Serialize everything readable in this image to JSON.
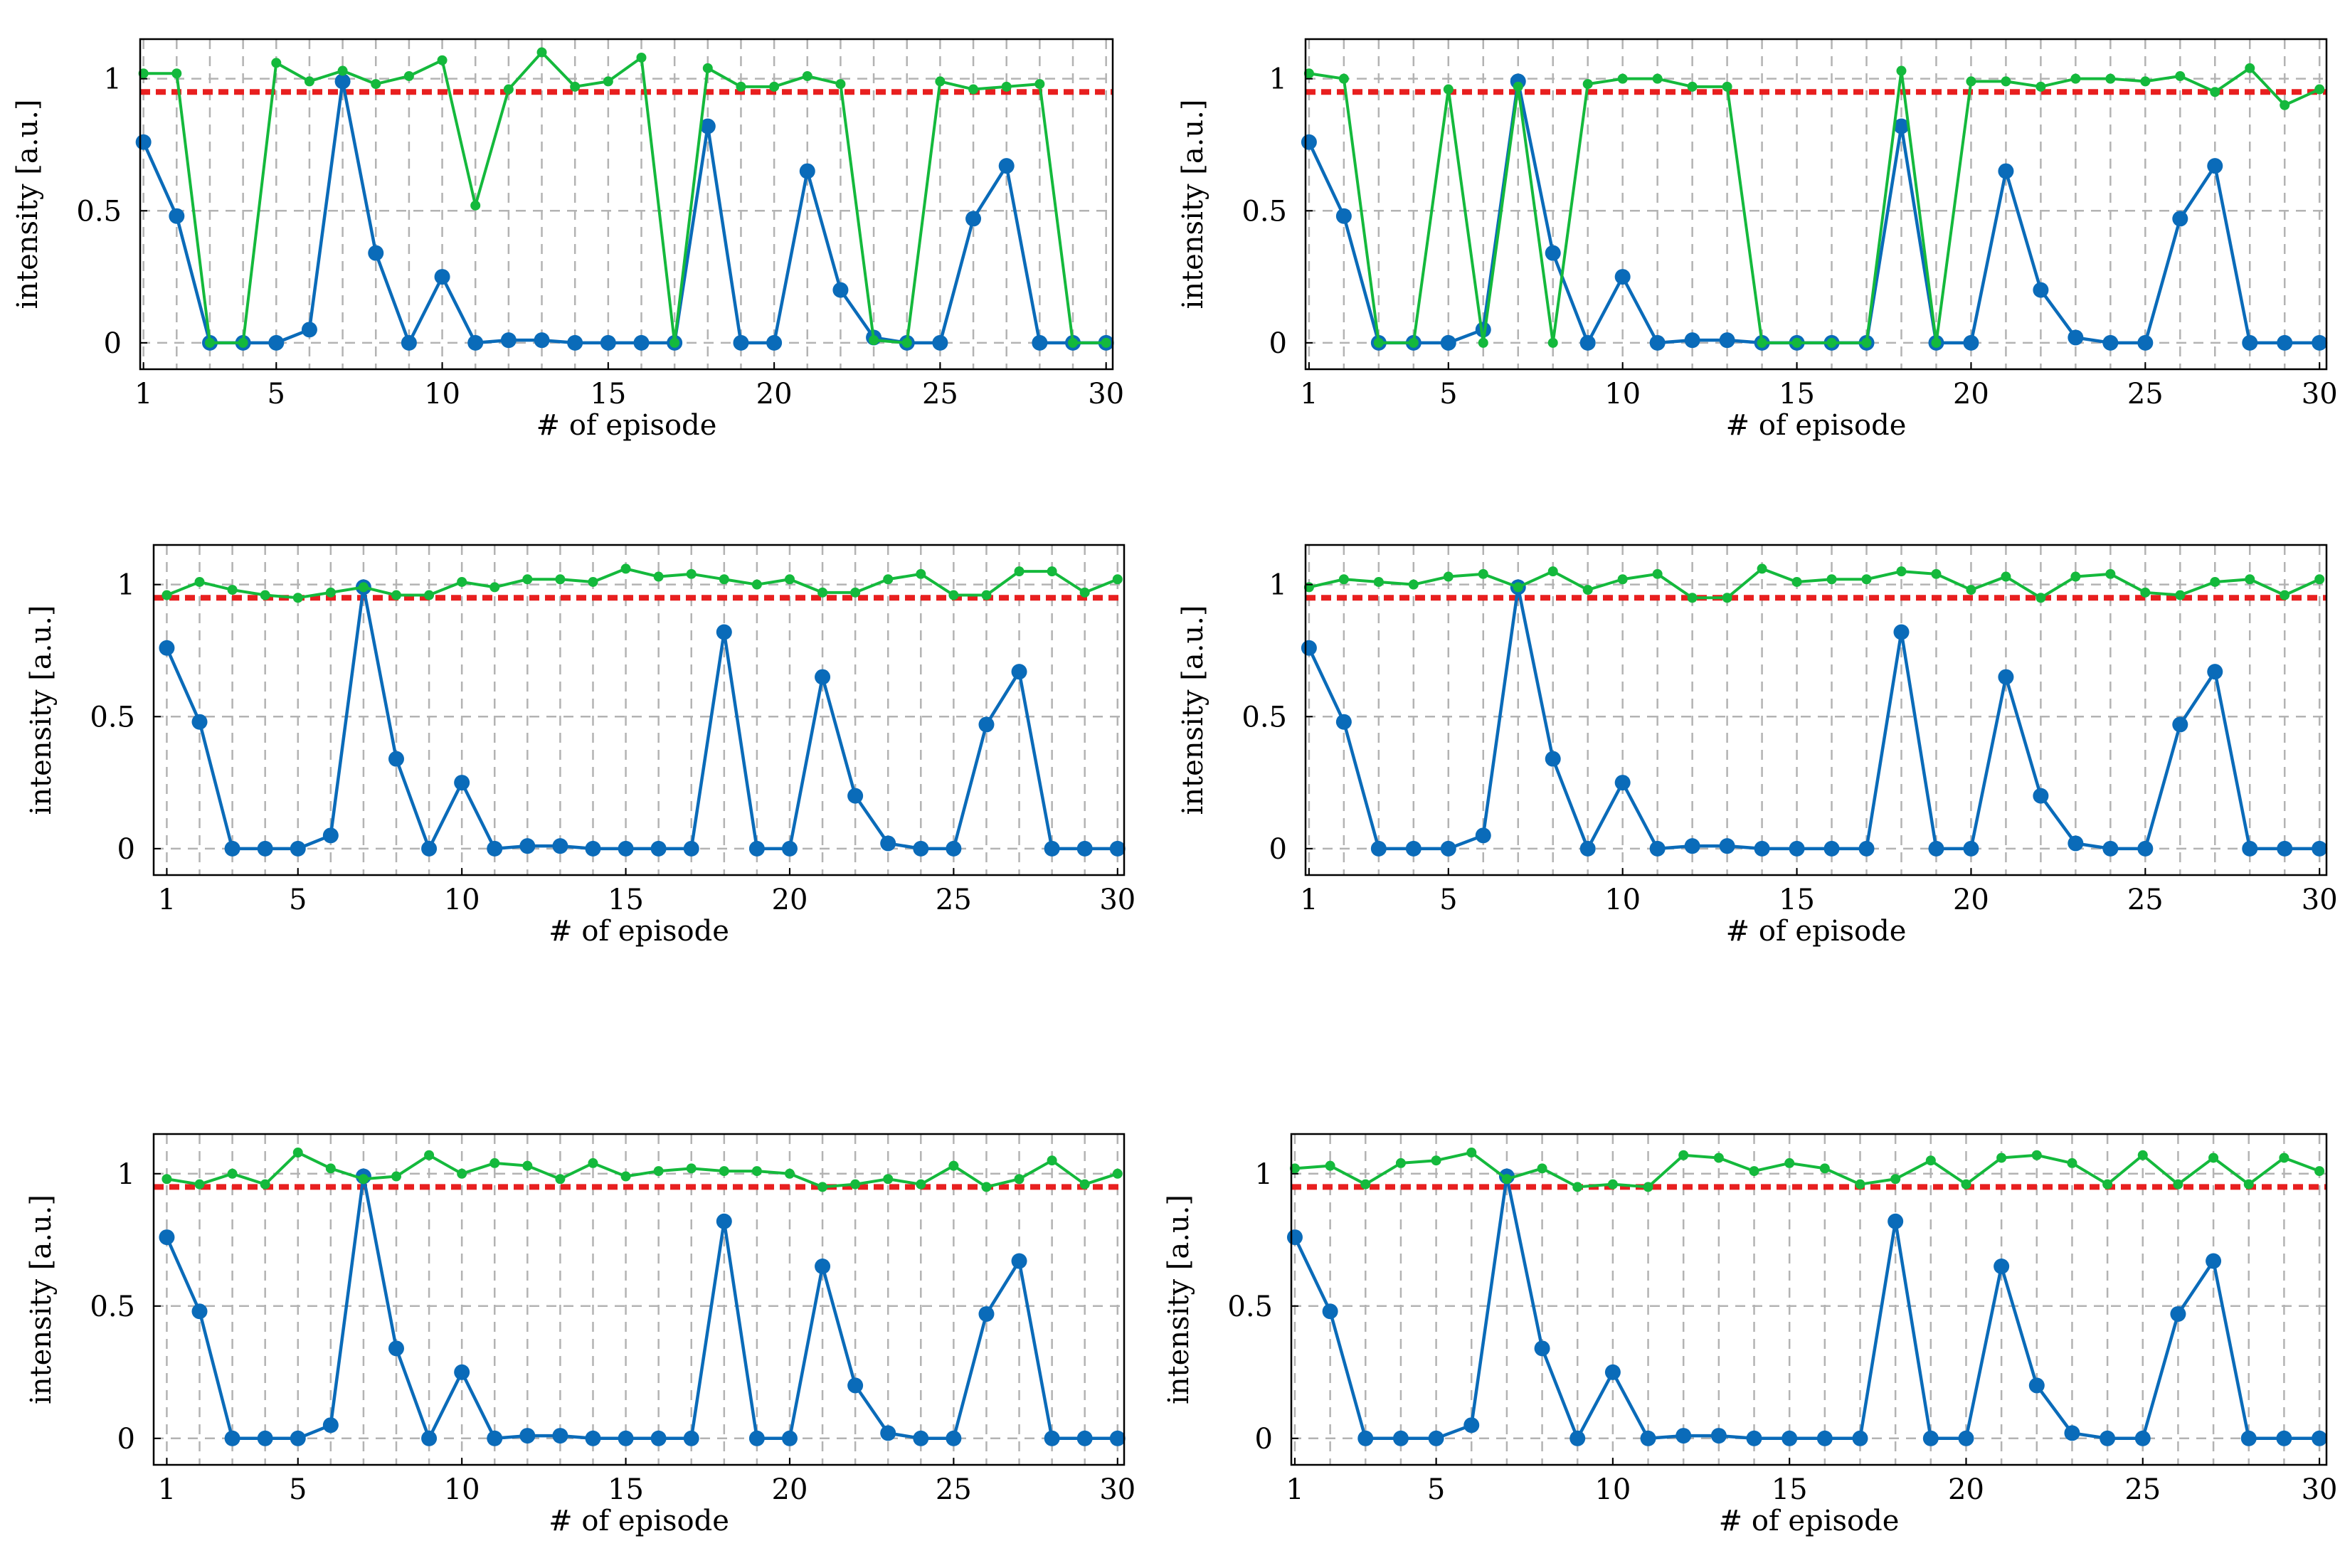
{
  "colors": {
    "blue_series": "#0A6BB9",
    "green_series": "#14B93C",
    "threshold": "#E81F1F",
    "grid": "#B3B3B3",
    "frame": "#000000"
  },
  "chart_data": [
    {
      "type": "line",
      "panel": "top-left",
      "xlabel": "# of episode",
      "ylabel": "intensity [a.u.]",
      "xticks": [
        "1",
        "5",
        "10",
        "15",
        "20",
        "25",
        "30"
      ],
      "yticks": [
        "0",
        "0.5",
        "1"
      ],
      "xlim": [
        0.9,
        30.2
      ],
      "ylim": [
        -0.1,
        1.15
      ],
      "threshold": 0.95,
      "x": [
        1,
        2,
        3,
        4,
        5,
        6,
        7,
        8,
        9,
        10,
        11,
        12,
        13,
        14,
        15,
        16,
        17,
        18,
        19,
        20,
        21,
        22,
        23,
        24,
        25,
        26,
        27,
        28,
        29,
        30
      ],
      "series": [
        {
          "name": "blue",
          "values": [
            0.76,
            0.48,
            0,
            0,
            0,
            0.05,
            0.99,
            0.34,
            0,
            0.25,
            0,
            0.01,
            0.01,
            0,
            0,
            0,
            0,
            0.82,
            0,
            0,
            0.65,
            0.2,
            0.02,
            0,
            0,
            0.47,
            0.67,
            0,
            0,
            0
          ]
        },
        {
          "name": "green",
          "values": [
            1.02,
            1.02,
            0,
            0,
            1.06,
            0.99,
            1.03,
            0.98,
            1.01,
            1.07,
            0.52,
            0.96,
            1.1,
            0.97,
            0.99,
            1.08,
            0,
            1.04,
            0.97,
            0.97,
            1.01,
            0.98,
            0.01,
            0,
            0.99,
            0.96,
            0.97,
            0.98,
            0,
            0
          ]
        }
      ]
    },
    {
      "type": "line",
      "panel": "top-right",
      "xlabel": "# of episode",
      "ylabel": "intensity [a.u.]",
      "xticks": [
        "1",
        "5",
        "10",
        "15",
        "20",
        "25",
        "30"
      ],
      "yticks": [
        "0",
        "0.5",
        "1"
      ],
      "xlim": [
        0.9,
        30.2
      ],
      "ylim": [
        -0.1,
        1.15
      ],
      "threshold": 0.95,
      "x": [
        1,
        2,
        3,
        4,
        5,
        6,
        7,
        8,
        9,
        10,
        11,
        12,
        13,
        14,
        15,
        16,
        17,
        18,
        19,
        20,
        21,
        22,
        23,
        24,
        25,
        26,
        27,
        28,
        29,
        30
      ],
      "series": [
        {
          "name": "blue",
          "values": [
            0.76,
            0.48,
            0,
            0,
            0,
            0.05,
            0.99,
            0.34,
            0,
            0.25,
            0,
            0.01,
            0.01,
            0,
            0,
            0,
            0,
            0.82,
            0,
            0,
            0.65,
            0.2,
            0.02,
            0,
            0,
            0.47,
            0.67,
            0,
            0,
            0
          ]
        },
        {
          "name": "green",
          "values": [
            1.02,
            1,
            0,
            0,
            0.96,
            0,
            0.97,
            0,
            0.98,
            1,
            1,
            0.97,
            0.97,
            0,
            0,
            0,
            0,
            1.03,
            0,
            0.99,
            0.99,
            0.97,
            1,
            1,
            0.99,
            1.01,
            0.95,
            1.04,
            0.9,
            0.96
          ]
        }
      ]
    },
    {
      "type": "line",
      "panel": "middle-left",
      "xlabel": "# of episode",
      "ylabel": "intensity [a.u.]",
      "xticks": [
        "1",
        "5",
        "10",
        "15",
        "20",
        "25",
        "30"
      ],
      "yticks": [
        "0",
        "0.5",
        "1"
      ],
      "xlim": [
        0.6,
        30.2
      ],
      "ylim": [
        -0.1,
        1.15
      ],
      "threshold": 0.95,
      "x": [
        1,
        2,
        3,
        4,
        5,
        6,
        7,
        8,
        9,
        10,
        11,
        12,
        13,
        14,
        15,
        16,
        17,
        18,
        19,
        20,
        21,
        22,
        23,
        24,
        25,
        26,
        27,
        28,
        29,
        30
      ],
      "series": [
        {
          "name": "blue",
          "values": [
            0.76,
            0.48,
            0,
            0,
            0,
            0.05,
            0.99,
            0.34,
            0,
            0.25,
            0,
            0.01,
            0.01,
            0,
            0,
            0,
            0,
            0.82,
            0,
            0,
            0.65,
            0.2,
            0.02,
            0,
            0,
            0.47,
            0.67,
            0,
            0,
            0
          ]
        },
        {
          "name": "green",
          "values": [
            0.96,
            1.01,
            0.98,
            0.96,
            0.95,
            0.97,
            0.99,
            0.96,
            0.96,
            1.01,
            0.99,
            1.02,
            1.02,
            1.01,
            1.06,
            1.03,
            1.04,
            1.02,
            1,
            1.02,
            0.97,
            0.97,
            1.02,
            1.04,
            0.96,
            0.96,
            1.05,
            1.05,
            0.97,
            1.02
          ]
        }
      ]
    },
    {
      "type": "line",
      "panel": "middle-right",
      "xlabel": "# of episode",
      "ylabel": "intensity [a.u.]",
      "xticks": [
        "1",
        "5",
        "10",
        "15",
        "20",
        "25",
        "30"
      ],
      "yticks": [
        "0",
        "0.5",
        "1"
      ],
      "xlim": [
        0.9,
        30.2
      ],
      "ylim": [
        -0.1,
        1.15
      ],
      "threshold": 0.95,
      "x": [
        1,
        2,
        3,
        4,
        5,
        6,
        7,
        8,
        9,
        10,
        11,
        12,
        13,
        14,
        15,
        16,
        17,
        18,
        19,
        20,
        21,
        22,
        23,
        24,
        25,
        26,
        27,
        28,
        29,
        30
      ],
      "series": [
        {
          "name": "blue",
          "values": [
            0.76,
            0.48,
            0,
            0,
            0,
            0.05,
            0.99,
            0.34,
            0,
            0.25,
            0,
            0.01,
            0.01,
            0,
            0,
            0,
            0,
            0.82,
            0,
            0,
            0.65,
            0.2,
            0.02,
            0,
            0,
            0.47,
            0.67,
            0,
            0,
            0
          ]
        },
        {
          "name": "green",
          "values": [
            0.99,
            1.02,
            1.01,
            1,
            1.03,
            1.04,
            0.99,
            1.05,
            0.98,
            1.02,
            1.04,
            0.95,
            0.95,
            1.06,
            1.01,
            1.02,
            1.02,
            1.05,
            1.04,
            0.98,
            1.03,
            0.95,
            1.03,
            1.04,
            0.97,
            0.96,
            1.01,
            1.02,
            0.96,
            1.02
          ]
        }
      ]
    },
    {
      "type": "line",
      "panel": "bottom-left",
      "xlabel": "# of episode",
      "ylabel": "intensity [a.u.]",
      "xticks": [
        "1",
        "5",
        "10",
        "15",
        "20",
        "25",
        "30"
      ],
      "yticks": [
        "0",
        "0.5",
        "1"
      ],
      "xlim": [
        0.6,
        30.2
      ],
      "ylim": [
        -0.1,
        1.15
      ],
      "threshold": 0.95,
      "x": [
        1,
        2,
        3,
        4,
        5,
        6,
        7,
        8,
        9,
        10,
        11,
        12,
        13,
        14,
        15,
        16,
        17,
        18,
        19,
        20,
        21,
        22,
        23,
        24,
        25,
        26,
        27,
        28,
        29,
        30
      ],
      "series": [
        {
          "name": "blue",
          "values": [
            0.76,
            0.48,
            0,
            0,
            0,
            0.05,
            0.99,
            0.34,
            0,
            0.25,
            0,
            0.01,
            0.01,
            0,
            0,
            0,
            0,
            0.82,
            0,
            0,
            0.65,
            0.2,
            0.02,
            0,
            0,
            0.47,
            0.67,
            0,
            0,
            0
          ]
        },
        {
          "name": "green",
          "values": [
            0.98,
            0.96,
            1,
            0.96,
            1.08,
            1.02,
            0.98,
            0.99,
            1.07,
            1,
            1.04,
            1.03,
            0.98,
            1.04,
            0.99,
            1.01,
            1.02,
            1.01,
            1.01,
            1,
            0.95,
            0.96,
            0.98,
            0.96,
            1.03,
            0.95,
            0.98,
            1.05,
            0.96,
            1
          ]
        }
      ]
    },
    {
      "type": "line",
      "panel": "bottom-right",
      "xlabel": "# of episode",
      "ylabel": "intensity [a.u.]",
      "xticks": [
        "1",
        "5",
        "10",
        "15",
        "20",
        "25",
        "30"
      ],
      "yticks": [
        "0",
        "0.5",
        "1"
      ],
      "xlim": [
        0.9,
        30.2
      ],
      "ylim": [
        -0.1,
        1.15
      ],
      "threshold": 0.95,
      "x": [
        1,
        2,
        3,
        4,
        5,
        6,
        7,
        8,
        9,
        10,
        11,
        12,
        13,
        14,
        15,
        16,
        17,
        18,
        19,
        20,
        21,
        22,
        23,
        24,
        25,
        26,
        27,
        28,
        29,
        30
      ],
      "series": [
        {
          "name": "blue",
          "values": [
            0.76,
            0.48,
            0,
            0,
            0,
            0.05,
            0.99,
            0.34,
            0,
            0.25,
            0,
            0.01,
            0.01,
            0,
            0,
            0,
            0,
            0.82,
            0,
            0,
            0.65,
            0.2,
            0.02,
            0,
            0,
            0.47,
            0.67,
            0,
            0,
            0
          ]
        },
        {
          "name": "green",
          "values": [
            1.02,
            1.03,
            0.96,
            1.04,
            1.05,
            1.08,
            0.98,
            1.02,
            0.95,
            0.96,
            0.95,
            1.07,
            1.06,
            1.01,
            1.04,
            1.02,
            0.96,
            0.98,
            1.05,
            0.96,
            1.06,
            1.07,
            1.04,
            0.96,
            1.07,
            0.96,
            1.06,
            0.96,
            1.06,
            1.01
          ]
        }
      ]
    }
  ]
}
